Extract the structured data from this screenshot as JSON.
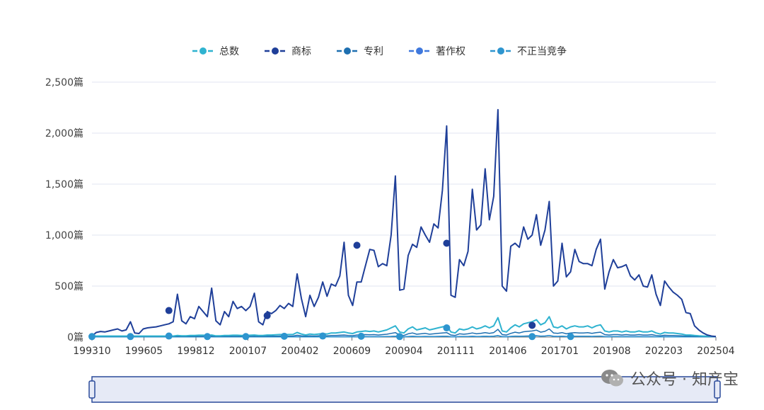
{
  "chart_data": {
    "type": "line",
    "legend_position": "top-center",
    "legend": [
      "总数",
      "商标",
      "专利",
      "著作权",
      "不正当竞争"
    ],
    "colors": {
      "总数": "#2fb3d0",
      "商标": "#1f3f99",
      "专利": "#1e6fb0",
      "著作权": "#3f78dd",
      "不正当竞争": "#2e95cf"
    },
    "y_tick_labels": [
      "0篇",
      "500篇",
      "1,000篇",
      "1,500篇",
      "2,000篇",
      "2,500篇"
    ],
    "ylim": [
      0,
      2500
    ],
    "x_tick_labels": [
      "199310",
      "199605",
      "199812",
      "200107",
      "200402",
      "200609",
      "200904",
      "201111",
      "201406",
      "201701",
      "201908",
      "202203",
      "202504"
    ],
    "trademark_series": [
      10,
      45,
      55,
      50,
      60,
      70,
      80,
      60,
      70,
      150,
      40,
      35,
      80,
      90,
      95,
      100,
      110,
      120,
      130,
      150,
      420,
      160,
      130,
      200,
      180,
      300,
      250,
      200,
      480,
      160,
      120,
      250,
      200,
      350,
      280,
      300,
      260,
      300,
      430,
      150,
      120,
      250,
      230,
      260,
      310,
      280,
      330,
      300,
      620,
      380,
      200,
      410,
      300,
      390,
      540,
      400,
      520,
      500,
      600,
      930,
      410,
      310,
      540,
      540,
      700,
      860,
      850,
      690,
      720,
      700,
      1000,
      1580,
      460,
      470,
      800,
      910,
      880,
      1080,
      1000,
      930,
      1110,
      1070,
      1440,
      2070,
      410,
      390,
      760,
      700,
      840,
      1450,
      1050,
      1100,
      1650,
      1150,
      1380,
      2230,
      500,
      450,
      890,
      920,
      880,
      1080,
      960,
      1000,
      1200,
      900,
      1050,
      1330,
      500,
      550,
      920,
      590,
      640,
      860,
      740,
      720,
      720,
      700,
      860,
      960,
      470,
      640,
      760,
      680,
      690,
      710,
      600,
      560,
      610,
      500,
      490,
      610,
      420,
      310,
      550,
      490,
      440,
      410,
      370,
      240,
      230,
      110,
      70,
      40,
      20,
      10,
      5
    ],
    "total_series": [
      10,
      10,
      10,
      10,
      10,
      10,
      10,
      10,
      10,
      10,
      10,
      10,
      10,
      10,
      10,
      10,
      10,
      10,
      10,
      10,
      15,
      12,
      12,
      15,
      15,
      18,
      18,
      15,
      20,
      12,
      12,
      15,
      15,
      18,
      18,
      15,
      15,
      18,
      20,
      15,
      15,
      20,
      20,
      22,
      25,
      22,
      25,
      25,
      45,
      30,
      20,
      30,
      25,
      30,
      35,
      30,
      40,
      40,
      45,
      50,
      40,
      35,
      50,
      55,
      60,
      55,
      60,
      50,
      60,
      70,
      90,
      110,
      50,
      40,
      80,
      100,
      70,
      80,
      90,
      70,
      80,
      90,
      100,
      110,
      50,
      40,
      80,
      70,
      80,
      100,
      80,
      90,
      110,
      90,
      110,
      190,
      60,
      50,
      90,
      120,
      100,
      130,
      140,
      150,
      170,
      120,
      140,
      200,
      100,
      90,
      110,
      80,
      100,
      110,
      100,
      100,
      110,
      90,
      110,
      120,
      60,
      50,
      60,
      60,
      50,
      60,
      50,
      50,
      60,
      50,
      50,
      60,
      40,
      30,
      45,
      40,
      40,
      35,
      30,
      20,
      20,
      15,
      12,
      10,
      8,
      5,
      5
    ],
    "markers": {
      "商标": [
        [
          18,
          260
        ],
        [
          41,
          210
        ],
        [
          62,
          900
        ],
        [
          83,
          920
        ],
        [
          103,
          115
        ]
      ],
      "others": [
        [
          0,
          5
        ],
        [
          9,
          5
        ],
        [
          18,
          10
        ],
        [
          27,
          5
        ],
        [
          36,
          5
        ],
        [
          45,
          8
        ],
        [
          54,
          10
        ],
        [
          63,
          8
        ],
        [
          72,
          5
        ],
        [
          83,
          90
        ],
        [
          103,
          5
        ],
        [
          112,
          5
        ]
      ]
    }
  },
  "watermark_text": "公众号 · 知产宝"
}
